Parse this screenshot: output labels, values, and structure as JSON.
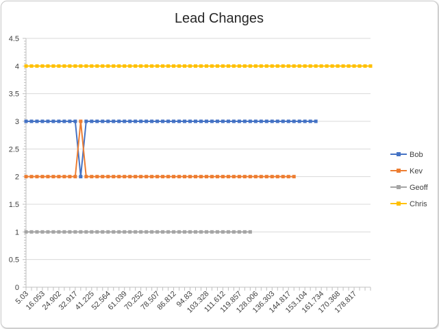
{
  "chart_data": {
    "type": "line",
    "title": "Lead Changes",
    "xlabel": "",
    "ylabel": "",
    "ylim": [
      0,
      4.5
    ],
    "yticks": [
      0,
      0.5,
      1,
      1.5,
      2,
      2.5,
      3,
      3.5,
      4,
      4.5
    ],
    "grid": true,
    "legend_position": "right",
    "x_tick_labels": [
      "5.03",
      "16.053",
      "24.902",
      "32.917",
      "41.225",
      "52.564",
      "61.039",
      "70.252",
      "78.507",
      "86.812",
      "94.83",
      "103.328",
      "111.612",
      "119.857",
      "128.006",
      "136.303",
      "144.817",
      "153.104",
      "161.734",
      "170.368",
      "178.817"
    ],
    "series": [
      {
        "name": "Bob",
        "color": "#4472c4",
        "values": [
          3,
          3,
          3,
          3,
          3,
          3,
          3,
          3,
          3,
          3,
          2,
          3,
          3,
          3,
          3,
          3,
          3,
          3,
          3,
          3,
          3,
          3,
          3,
          3,
          3,
          3,
          3,
          3,
          3,
          3,
          3,
          3,
          3,
          3,
          3,
          3,
          3,
          3,
          3,
          3,
          3,
          3,
          3,
          3,
          3,
          3,
          3,
          3,
          3,
          3,
          3,
          3,
          3,
          3
        ]
      },
      {
        "name": "Kev",
        "color": "#ed7d31",
        "values": [
          2,
          2,
          2,
          2,
          2,
          2,
          2,
          2,
          2,
          2,
          3,
          2,
          2,
          2,
          2,
          2,
          2,
          2,
          2,
          2,
          2,
          2,
          2,
          2,
          2,
          2,
          2,
          2,
          2,
          2,
          2,
          2,
          2,
          2,
          2,
          2,
          2,
          2,
          2,
          2,
          2,
          2,
          2,
          2,
          2,
          2,
          2,
          2,
          2,
          2
        ]
      },
      {
        "name": "Geoff",
        "color": "#a5a5a5",
        "values": [
          1,
          1,
          1,
          1,
          1,
          1,
          1,
          1,
          1,
          1,
          1,
          1,
          1,
          1,
          1,
          1,
          1,
          1,
          1,
          1,
          1,
          1,
          1,
          1,
          1,
          1,
          1,
          1,
          1,
          1,
          1,
          1,
          1,
          1,
          1,
          1,
          1,
          1,
          1,
          1,
          1,
          1
        ]
      },
      {
        "name": "Chris",
        "color": "#ffc000",
        "values": [
          4,
          4,
          4,
          4,
          4,
          4,
          4,
          4,
          4,
          4,
          4,
          4,
          4,
          4,
          4,
          4,
          4,
          4,
          4,
          4,
          4,
          4,
          4,
          4,
          4,
          4,
          4,
          4,
          4,
          4,
          4,
          4,
          4,
          4,
          4,
          4,
          4,
          4,
          4,
          4,
          4,
          4,
          4,
          4,
          4,
          4,
          4,
          4,
          4,
          4,
          4,
          4,
          4,
          4,
          4,
          4,
          4,
          4,
          4,
          4,
          4,
          4,
          4,
          4
        ]
      }
    ]
  }
}
